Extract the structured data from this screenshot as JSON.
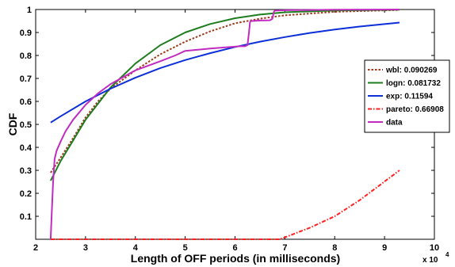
{
  "chart_data": {
    "type": "line",
    "title": "",
    "xlabel": "Length of OFF periods (in milliseconds)",
    "ylabel": "CDF",
    "x_multiplier_label": "x 10",
    "x_multiplier_exponent": "4",
    "xlim": [
      2,
      10
    ],
    "ylim": [
      0,
      1
    ],
    "xticks": [
      "2",
      "3",
      "4",
      "5",
      "6",
      "7",
      "8",
      "9",
      "10"
    ],
    "yticks": [
      "0.1",
      "0.2",
      "0.3",
      "0.4",
      "0.5",
      "0.6",
      "0.7",
      "0.8",
      "0.9",
      "1"
    ],
    "grid": false,
    "legend_position": "right",
    "series": [
      {
        "name": "wbl: 0.090269",
        "color": "#a0391c",
        "dash": "dotted",
        "x": [
          2.3,
          2.5,
          2.75,
          3,
          3.25,
          3.5,
          4,
          4.5,
          5,
          5.5,
          6,
          6.5,
          7,
          8,
          9.3
        ],
        "y": [
          0.29,
          0.355,
          0.44,
          0.53,
          0.6,
          0.655,
          0.735,
          0.805,
          0.86,
          0.905,
          0.94,
          0.96,
          0.975,
          0.99,
          0.998
        ]
      },
      {
        "name": "logn: 0.081732",
        "color": "#1e7d1e",
        "dash": "solid",
        "x": [
          2.3,
          2.5,
          2.75,
          3,
          3.5,
          4,
          4.5,
          5,
          5.5,
          6,
          6.5,
          7,
          8,
          9.3
        ],
        "y": [
          0.255,
          0.34,
          0.43,
          0.52,
          0.66,
          0.765,
          0.845,
          0.9,
          0.937,
          0.962,
          0.978,
          0.988,
          0.996,
          0.999
        ]
      },
      {
        "name": "exp: 0.11594",
        "color": "#0c2fd8",
        "dash": "solid",
        "x": [
          2.3,
          2.5,
          3,
          3.5,
          4,
          4.5,
          5,
          5.5,
          6,
          6.5,
          7,
          7.5,
          8,
          8.5,
          9.3
        ],
        "y": [
          0.508,
          0.535,
          0.6,
          0.655,
          0.703,
          0.745,
          0.78,
          0.81,
          0.837,
          0.86,
          0.88,
          0.898,
          0.913,
          0.926,
          0.943
        ]
      },
      {
        "name": "pareto: 0.66908",
        "color": "#ff2020",
        "dash": "dashdot",
        "x": [
          2.3,
          6.9,
          7.5,
          8,
          8.5,
          9.3
        ],
        "y": [
          0,
          0,
          0.05,
          0.1,
          0.17,
          0.3
        ]
      },
      {
        "name": "data",
        "color": "#c02cc0",
        "dash": "solid",
        "x": [
          2.3,
          2.32,
          2.35,
          2.38,
          2.42,
          2.5,
          2.6,
          2.75,
          3,
          3.25,
          3.5,
          4,
          4.5,
          4.8,
          4.9,
          5,
          5.5,
          6.1,
          6.2,
          6.25,
          6.28,
          6.3,
          6.32,
          6.35,
          6.5,
          6.7,
          6.75,
          6.78,
          6.8,
          7,
          8,
          9.3
        ],
        "y": [
          0,
          0.1,
          0.25,
          0.35,
          0.385,
          0.425,
          0.47,
          0.52,
          0.585,
          0.635,
          0.675,
          0.735,
          0.775,
          0.8,
          0.81,
          0.82,
          0.83,
          0.84,
          0.84,
          0.845,
          0.9,
          0.945,
          0.95,
          0.95,
          0.952,
          0.953,
          0.96,
          0.99,
          0.995,
          0.997,
          0.999,
          1
        ]
      }
    ]
  }
}
